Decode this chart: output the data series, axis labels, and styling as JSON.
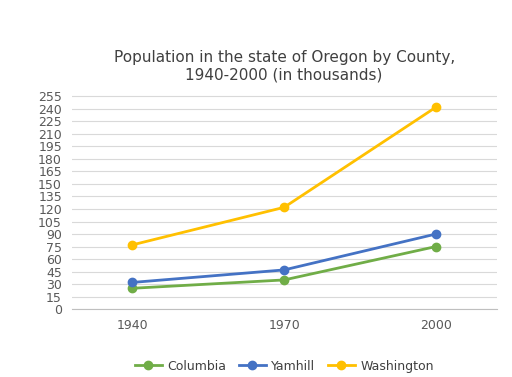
{
  "title": "Population in the state of Oregon by County,\n1940-2000 (in thousands)",
  "x_values": [
    1940,
    1970,
    2000
  ],
  "series": [
    {
      "name": "Columbia",
      "values": [
        25,
        35,
        75
      ],
      "color": "#70AD47",
      "marker": "o"
    },
    {
      "name": "Yamhill",
      "values": [
        32,
        47,
        90
      ],
      "color": "#4472C4",
      "marker": "o"
    },
    {
      "name": "Washington",
      "values": [
        77,
        122,
        242
      ],
      "color": "#FFC000",
      "marker": "o"
    }
  ],
  "ylim": [
    0,
    262
  ],
  "yticks": [
    0,
    15,
    30,
    45,
    60,
    75,
    90,
    105,
    120,
    135,
    150,
    165,
    180,
    195,
    210,
    225,
    240,
    255
  ],
  "xticks": [
    1940,
    1970,
    2000
  ],
  "background_color": "#ffffff",
  "grid_color": "#d9d9d9",
  "title_fontsize": 11,
  "legend_fontsize": 9,
  "tick_fontsize": 9,
  "line_width": 2.0,
  "marker_size": 6
}
